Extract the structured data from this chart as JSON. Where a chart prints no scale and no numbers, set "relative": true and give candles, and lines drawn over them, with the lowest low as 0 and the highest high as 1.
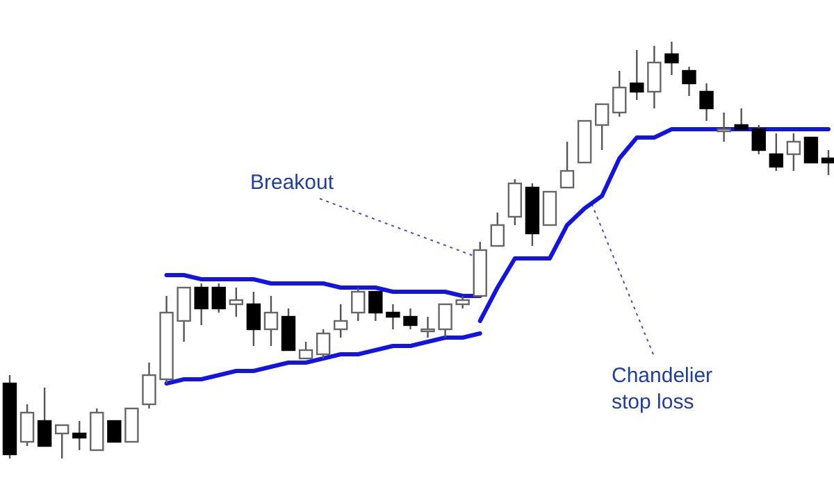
{
  "chart_data": {
    "type": "candlestick",
    "relative": true,
    "categories": [
      null,
      null,
      null,
      null,
      null,
      null,
      null,
      null,
      null,
      null,
      null,
      null,
      null,
      null,
      null,
      null,
      null,
      null,
      null,
      null,
      null,
      null,
      null,
      null,
      null,
      null,
      null,
      null,
      null,
      null,
      null,
      null,
      null,
      null,
      null,
      null,
      null,
      null,
      null,
      null,
      null,
      null,
      null,
      null,
      null,
      null,
      null,
      null
    ],
    "ohlc": [
      [
        0.18,
        0.2,
        0,
        0.01
      ],
      [
        0.04,
        0.13,
        0.03,
        0.11
      ],
      [
        0.09,
        0.17,
        0.03,
        0.03
      ],
      [
        0.06,
        0.08,
        0,
        0.08
      ],
      [
        0.06,
        0.09,
        0.02,
        0.05
      ],
      [
        0.02,
        0.12,
        0.02,
        0.11
      ],
      [
        0.09,
        0.09,
        0.04,
        0.04
      ],
      [
        0.04,
        0.12,
        0.04,
        0.12
      ],
      [
        0.13,
        0.23,
        0.12,
        0.2
      ],
      [
        0.19,
        0.39,
        0.18,
        0.35
      ],
      [
        0.33,
        0.41,
        0.28,
        0.41
      ],
      [
        0.41,
        0.42,
        0.32,
        0.36
      ],
      [
        0.41,
        0.42,
        0.35,
        0.36
      ],
      [
        0.37,
        0.41,
        0.34,
        0.38
      ],
      [
        0.37,
        0.4,
        0.27,
        0.31
      ],
      [
        0.31,
        0.39,
        0.27,
        0.35
      ],
      [
        0.34,
        0.36,
        0.26,
        0.26
      ],
      [
        0.24,
        0.28,
        0.24,
        0.26
      ],
      [
        0.25,
        0.31,
        0.24,
        0.3
      ],
      [
        0.31,
        0.37,
        0.29,
        0.33
      ],
      [
        0.35,
        0.41,
        0.33,
        0.4
      ],
      [
        0.4,
        0.4,
        0.33,
        0.35
      ],
      [
        0.35,
        0.37,
        0.31,
        0.34
      ],
      [
        0.34,
        0.36,
        0.31,
        0.32
      ],
      [
        0.31,
        0.34,
        0.29,
        0.31
      ],
      [
        0.31,
        0.37,
        0.29,
        0.37
      ],
      [
        0.37,
        0.39,
        0.36,
        0.38
      ],
      [
        0.39,
        0.52,
        0.39,
        0.5
      ],
      [
        0.51,
        0.59,
        0.51,
        0.56
      ],
      [
        0.58,
        0.67,
        0.56,
        0.66
      ],
      [
        0.65,
        0.66,
        0.51,
        0.54
      ],
      [
        0.56,
        0.64,
        0.56,
        0.64
      ],
      [
        0.65,
        0.76,
        0.65,
        0.69
      ],
      [
        0.71,
        0.81,
        0.71,
        0.81
      ],
      [
        0.8,
        0.85,
        0.74,
        0.85
      ],
      [
        0.83,
        0.93,
        0.82,
        0.89
      ],
      [
        0.9,
        0.98,
        0.86,
        0.88
      ],
      [
        0.88,
        0.99,
        0.84,
        0.95
      ],
      [
        0.97,
        1.0,
        0.92,
        0.95
      ],
      [
        0.93,
        0.94,
        0.87,
        0.9
      ],
      [
        0.88,
        0.9,
        0.81,
        0.84
      ],
      [
        0.79,
        0.83,
        0.76,
        0.79
      ],
      [
        0.8,
        0.84,
        0.79,
        0.79
      ],
      [
        0.79,
        0.8,
        0.73,
        0.74
      ],
      [
        0.73,
        0.78,
        0.69,
        0.7
      ],
      [
        0.73,
        0.78,
        0.69,
        0.76
      ],
      [
        0.77,
        0.77,
        0.71,
        0.71
      ],
      [
        0.72,
        0.74,
        0.68,
        0.71
      ]
    ],
    "series": [
      {
        "type": "line",
        "color": "#1414e0",
        "values": [
          null,
          null,
          null,
          null,
          null,
          null,
          null,
          null,
          null,
          0.44,
          0.44,
          0.43,
          0.43,
          0.43,
          0.43,
          0.42,
          0.42,
          0.42,
          0.42,
          0.41,
          0.41,
          0.41,
          0.4,
          0.4,
          0.4,
          0.4,
          0.39,
          0.39,
          null,
          null,
          null,
          null,
          null,
          null,
          null,
          null,
          null,
          null,
          null,
          null,
          null,
          null,
          null,
          null,
          null,
          null,
          null,
          null
        ]
      },
      {
        "type": "line",
        "color": "#1414e0",
        "values": [
          null,
          null,
          null,
          null,
          null,
          null,
          null,
          null,
          null,
          0.18,
          0.19,
          0.19,
          0.2,
          0.21,
          0.21,
          0.22,
          0.23,
          0.23,
          0.24,
          0.25,
          0.25,
          0.26,
          0.27,
          0.27,
          0.28,
          0.29,
          0.29,
          0.3,
          null,
          null,
          null,
          null,
          null,
          null,
          null,
          null,
          null,
          null,
          null,
          null,
          null,
          null,
          null,
          null,
          null,
          null,
          null,
          null
        ]
      },
      {
        "type": "line",
        "color": "#1414e0",
        "values": [
          null,
          null,
          null,
          null,
          null,
          null,
          null,
          null,
          null,
          null,
          null,
          null,
          null,
          null,
          null,
          null,
          null,
          null,
          null,
          null,
          null,
          null,
          null,
          null,
          null,
          null,
          null,
          0.33,
          0.41,
          0.48,
          0.48,
          0.48,
          0.56,
          0.6,
          0.63,
          0.72,
          0.77,
          0.77,
          0.79,
          0.79,
          0.79,
          0.79,
          0.79,
          0.79,
          0.79,
          0.79,
          0.79,
          0.79
        ]
      }
    ],
    "annotations": [
      "Breakout",
      "Chandelier\nstop loss"
    ]
  }
}
